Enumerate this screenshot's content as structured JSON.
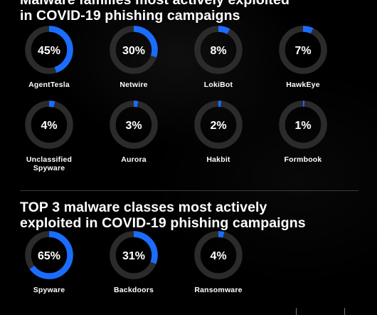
{
  "colors": {
    "accent": "#1a6dff",
    "track": "#2b2b2b",
    "background": "#000000",
    "text": "#ffffff"
  },
  "header": {
    "title_line1": "Malware families most actively exploited",
    "title_line2": "in COVID-19 phishing campaigns"
  },
  "section2": {
    "title_line1": "TOP 3 malware classes most actively",
    "title_line2": "exploited in COVID-19 phishing campaigns"
  },
  "chart_data": [
    {
      "type": "donut",
      "title": "Malware families most actively exploited in COVID-19 phishing campaigns",
      "unit": "%",
      "items": [
        {
          "label": "AgentTesla",
          "value": 45,
          "display": "45%"
        },
        {
          "label": "Netwire",
          "value": 30,
          "display": "30%"
        },
        {
          "label": "LokiBot",
          "value": 8,
          "display": "8%"
        },
        {
          "label": "HawkEye",
          "value": 7,
          "display": "7%"
        },
        {
          "label": "Unclassified Spyware",
          "value": 4,
          "display": "4%"
        },
        {
          "label": "Aurora",
          "value": 3,
          "display": "3%"
        },
        {
          "label": "Hakbit",
          "value": 2,
          "display": "2%"
        },
        {
          "label": "Formbook",
          "value": 1,
          "display": "1%"
        }
      ]
    },
    {
      "type": "donut",
      "title": "TOP 3 malware classes most actively exploited in COVID-19 phishing campaigns",
      "unit": "%",
      "items": [
        {
          "label": "Spyware",
          "value": 65,
          "display": "65%"
        },
        {
          "label": "Backdoors",
          "value": 31,
          "display": "31%"
        },
        {
          "label": "Ransomware",
          "value": 4,
          "display": "4%"
        }
      ]
    }
  ]
}
